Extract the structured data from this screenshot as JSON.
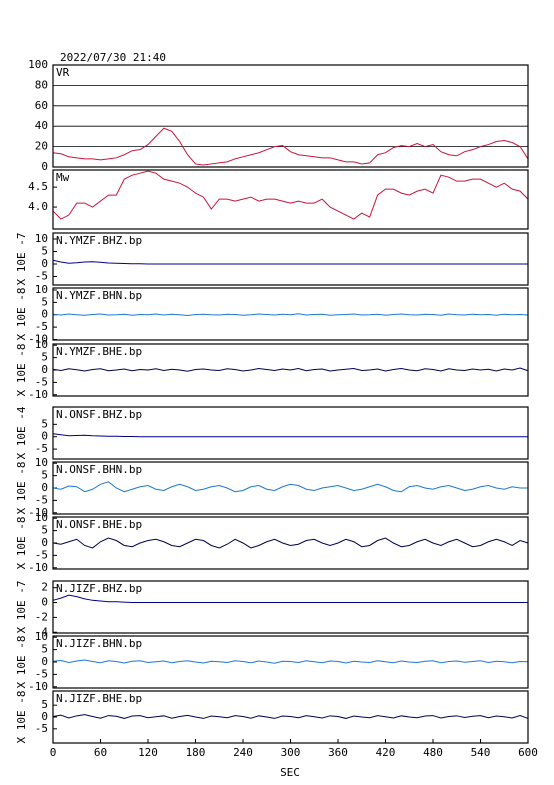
{
  "chart_data": {
    "type": "line",
    "title": "2022/07/30 21:40",
    "xlabel": "SEC",
    "xlim": [
      0,
      600
    ],
    "xticks": [
      0,
      60,
      120,
      180,
      240,
      300,
      360,
      420,
      480,
      540,
      600
    ],
    "x": [
      0,
      10,
      20,
      30,
      40,
      50,
      60,
      70,
      80,
      90,
      100,
      110,
      120,
      130,
      140,
      150,
      160,
      170,
      180,
      190,
      200,
      210,
      220,
      230,
      240,
      250,
      260,
      270,
      280,
      290,
      300,
      310,
      320,
      330,
      340,
      350,
      360,
      370,
      380,
      390,
      400,
      410,
      420,
      430,
      440,
      450,
      460,
      470,
      480,
      490,
      500,
      510,
      520,
      530,
      540,
      550,
      560,
      570,
      580,
      590,
      600
    ],
    "panels": [
      {
        "label": "VR",
        "ylim": [
          0,
          100
        ],
        "yticks": [
          0,
          20,
          40,
          60,
          80,
          100
        ],
        "grid": true,
        "series": [
          {
            "color": "#c8143c",
            "values": [
              14,
              13,
              10,
              9,
              8,
              8,
              7,
              8,
              9,
              12,
              16,
              17,
              22,
              30,
              38,
              35,
              25,
              12,
              3,
              2,
              3,
              4,
              5,
              8,
              10,
              12,
              14,
              17,
              20,
              21,
              15,
              12,
              11,
              10,
              9,
              9,
              7,
              5,
              5,
              3,
              4,
              12,
              14,
              19,
              21,
              20,
              23,
              20,
              22,
              15,
              12,
              11,
              15,
              17,
              20,
              22,
              25,
              26,
              24,
              20,
              8
            ]
          }
        ]
      },
      {
        "label": "Mw",
        "ylim": [
          3.45,
          4.93
        ],
        "yticks": [
          {
            "value": 4.0,
            "label": "4.0"
          },
          4.5
        ],
        "grid": false,
        "series": [
          {
            "color": "#c8143c",
            "values": [
              3.9,
              3.7,
              3.8,
              4.1,
              4.1,
              4.0,
              4.15,
              4.3,
              4.3,
              4.7,
              4.8,
              4.85,
              4.9,
              4.85,
              4.7,
              4.65,
              4.6,
              4.5,
              4.35,
              4.25,
              3.95,
              4.2,
              4.2,
              4.15,
              4.2,
              4.25,
              4.15,
              4.2,
              4.2,
              4.15,
              4.1,
              4.15,
              4.1,
              4.1,
              4.2,
              4.0,
              3.9,
              3.8,
              3.7,
              3.85,
              3.75,
              4.3,
              4.45,
              4.45,
              4.35,
              4.3,
              4.4,
              4.45,
              4.35,
              4.8,
              4.75,
              4.65,
              4.65,
              4.7,
              4.7,
              4.6,
              4.5,
              4.6,
              4.45,
              4.4,
              4.2
            ]
          }
        ]
      },
      {
        "label": "N.YMZF.BHZ.bp",
        "ylabel": "X 10E -7",
        "ylim": [
          -8.4,
          12.4
        ],
        "yticks": [
          -5,
          0,
          5,
          10
        ],
        "grid": false,
        "series": [
          {
            "color": "#00008b",
            "values": [
              1.5,
              0.8,
              0.3,
              0.5,
              0.8,
              0.9,
              0.7,
              0.4,
              0.3,
              0.2,
              0.1,
              0.1,
              0,
              0,
              0,
              0,
              0,
              0,
              0,
              0,
              0,
              0,
              0,
              0,
              0,
              0,
              0,
              0,
              0,
              0,
              0,
              0,
              0,
              0,
              0,
              0,
              0,
              0,
              0,
              0,
              0,
              0,
              0,
              0,
              0,
              0,
              0,
              0,
              0,
              0,
              0,
              0,
              0,
              0,
              0,
              0,
              0,
              0,
              0,
              0,
              0
            ]
          }
        ]
      },
      {
        "label": "N.YMZF.BHN.bp",
        "ylabel": "X 10E -8",
        "ylim": [
          -10.2,
          10.8
        ],
        "yticks": [
          -10,
          -5,
          0,
          5,
          10
        ],
        "grid": false,
        "series": [
          {
            "color": "#1e78d2",
            "values": [
              0.2,
              -0.1,
              0.3,
              0,
              -0.2,
              0.1,
              0.3,
              -0.1,
              0,
              0.2,
              -0.2,
              0.1,
              0,
              0.3,
              -0.1,
              0.2,
              0,
              -0.3,
              0.1,
              0.2,
              0,
              -0.1,
              0.2,
              0.1,
              -0.2,
              0,
              0.3,
              0.1,
              -0.1,
              0.2,
              0,
              0.4,
              -0.1,
              0.1,
              0.2,
              -0.2,
              0,
              0.1,
              0.3,
              -0.1,
              0,
              0.2,
              -0.2,
              0.1,
              0.3,
              0,
              -0.1,
              0.2,
              0.1,
              -0.2,
              0.3,
              0,
              -0.1,
              0.2,
              0,
              0.1,
              -0.2,
              0.2,
              0,
              0.1,
              -0.1
            ]
          }
        ]
      },
      {
        "label": "N.YMZF.BHE.bp",
        "ylabel": "X 10E -8",
        "ylim": [
          -10.5,
          10.5
        ],
        "yticks": [
          -10,
          -5,
          0,
          5,
          10
        ],
        "grid": false,
        "series": [
          {
            "color": "#000050",
            "values": [
              0.3,
              -0.2,
              0.5,
              0.1,
              -0.4,
              0.2,
              0.5,
              -0.3,
              0,
              0.4,
              -0.3,
              0.2,
              0,
              0.5,
              -0.2,
              0.3,
              0,
              -0.5,
              0.2,
              0.4,
              0,
              -0.2,
              0.5,
              0.2,
              -0.4,
              0,
              0.6,
              0.2,
              -0.2,
              0.4,
              0,
              0.6,
              -0.3,
              0.2,
              0.4,
              -0.4,
              0,
              0.3,
              0.6,
              -0.2,
              0,
              0.4,
              -0.4,
              0.2,
              0.6,
              0,
              -0.3,
              0.5,
              0.2,
              -0.4,
              0.5,
              0,
              -0.2,
              0.4,
              0,
              0.3,
              -0.4,
              0.4,
              0,
              0.8,
              -0.3
            ]
          }
        ]
      },
      {
        "label": "N.ONSF.BHZ.bp",
        "ylabel": "X 10E -4",
        "ylim": [
          -9,
          12
        ],
        "yticks": [
          -5,
          0,
          5
        ],
        "grid": false,
        "series": [
          {
            "color": "#00008b",
            "values": [
              1.2,
              0.8,
              0.4,
              0.5,
              0.6,
              0.4,
              0.3,
              0.2,
              0.2,
              0.1,
              0.1,
              0,
              0,
              0,
              0,
              0,
              0,
              0,
              0,
              0,
              0,
              0,
              0,
              0,
              0,
              0,
              0,
              0,
              0,
              0,
              0,
              0,
              0,
              0,
              0,
              0,
              0,
              0,
              0,
              0,
              0,
              0,
              0,
              0,
              0,
              0,
              0,
              0,
              0,
              0,
              0,
              0,
              0,
              0,
              0,
              0,
              0,
              0,
              0,
              0,
              0
            ]
          }
        ]
      },
      {
        "label": "N.ONSF.BHN.bp",
        "ylabel": "X 10E -8",
        "ylim": [
          -10.5,
          10.5
        ],
        "yticks": [
          -10,
          -5,
          0,
          5,
          10
        ],
        "grid": false,
        "series": [
          {
            "color": "#1e78d2",
            "values": [
              0,
              -0.5,
              0.8,
              0.5,
              -1.5,
              -0.5,
              1.5,
              2.5,
              0,
              -1.5,
              -0.5,
              0.5,
              1,
              -0.5,
              -1,
              0.5,
              1.5,
              0.5,
              -1,
              -0.5,
              0.5,
              1,
              0,
              -1.5,
              -1,
              0.5,
              1,
              -0.5,
              -1,
              0.5,
              1.5,
              1,
              -0.5,
              -1,
              0,
              0.5,
              1,
              0,
              -1,
              -0.5,
              0.5,
              1.5,
              0.5,
              -1,
              -1.5,
              0.5,
              1,
              0,
              -0.5,
              0.5,
              1,
              0,
              -1,
              -0.5,
              0.5,
              1,
              0,
              -0.5,
              0.5,
              0,
              0
            ]
          }
        ]
      },
      {
        "label": "N.ONSF.BHE.bp",
        "ylabel": "X 10E -8",
        "ylim": [
          -10.5,
          10.5
        ],
        "yticks": [
          -10,
          -5,
          0,
          5,
          10
        ],
        "grid": false,
        "series": [
          {
            "color": "#000050",
            "values": [
              0,
              -0.5,
              0.5,
              1.5,
              -1,
              -2,
              0.5,
              2,
              1,
              -1,
              -1.5,
              0,
              1,
              1.5,
              0.5,
              -1,
              -1.5,
              0,
              1.5,
              1,
              -1,
              -2,
              -0.5,
              1.5,
              0,
              -2,
              -1,
              0.5,
              1.5,
              0,
              -1,
              -0.5,
              1,
              1.5,
              0,
              -1,
              0,
              1.5,
              0.5,
              -1.5,
              -1,
              1,
              2,
              0,
              -1.5,
              -1,
              0.5,
              1.5,
              0,
              -1,
              0.5,
              1.5,
              0,
              -1.5,
              -1,
              0.5,
              1.5,
              0.5,
              -1,
              1,
              0
            ]
          }
        ]
      },
      {
        "label": "N.JIZF.BHZ.bp",
        "ylabel": "X 10E -7",
        "ylim": [
          -4.1,
          2.9
        ],
        "yticks": [
          -4,
          -2,
          0,
          2
        ],
        "grid": false,
        "series": [
          {
            "color": "#00008b",
            "values": [
              0.3,
              0.6,
              1.0,
              0.8,
              0.5,
              0.3,
              0.2,
              0.1,
              0.1,
              0.05,
              0,
              0,
              0,
              0,
              0,
              0,
              0,
              0,
              0,
              0,
              0,
              0,
              0,
              0,
              0,
              0,
              0,
              0,
              0,
              0,
              0,
              0,
              0,
              0,
              0,
              0,
              0,
              0,
              0,
              0,
              0,
              0,
              0,
              0,
              0,
              0,
              0,
              0,
              0,
              0,
              0,
              0,
              0,
              0,
              0,
              0,
              0,
              0,
              0,
              0,
              0
            ]
          }
        ]
      },
      {
        "label": "N.JIZF.BHN.bp",
        "ylabel": "X 10E -8",
        "ylim": [
          -10.5,
          10.5
        ],
        "yticks": [
          -10,
          -5,
          0,
          5,
          10
        ],
        "grid": false,
        "series": [
          {
            "color": "#1e78d2",
            "values": [
              0.3,
              0.6,
              -0.2,
              0.4,
              0.8,
              0.2,
              -0.3,
              0.5,
              0.2,
              -0.4,
              0.3,
              0.5,
              -0.2,
              0.1,
              0.4,
              -0.3,
              0.2,
              0.5,
              0,
              -0.4,
              0.3,
              0.1,
              -0.2,
              0.5,
              0.2,
              -0.3,
              0.4,
              0,
              -0.5,
              0.3,
              0.2,
              -0.2,
              0.5,
              0.1,
              -0.3,
              0.4,
              0.2,
              -0.4,
              0.3,
              0,
              -0.2,
              0.5,
              0.1,
              -0.3,
              0.4,
              0,
              -0.2,
              0.3,
              0.5,
              -0.3,
              0.2,
              0.4,
              -0.1,
              0.2,
              0.5,
              -0.2,
              0.3,
              0.1,
              -0.3,
              0.2,
              0.1
            ]
          }
        ]
      },
      {
        "label": "N.JIZF.BHE.bp",
        "ylabel": "X 10E -8",
        "ylim": [
          -11,
          11
        ],
        "yticks": [
          -5,
          0,
          5
        ],
        "grid": false,
        "series": [
          {
            "color": "#000050",
            "values": [
              0.2,
              0.8,
              -0.4,
              0.5,
              1.0,
              0.2,
              -0.5,
              0.6,
              0.3,
              -0.6,
              0.4,
              0.6,
              -0.3,
              0.1,
              0.5,
              -0.5,
              0.2,
              0.7,
              0,
              -0.6,
              0.4,
              0.1,
              -0.3,
              0.6,
              0.2,
              -0.5,
              0.5,
              0,
              -0.6,
              0.4,
              0.2,
              -0.3,
              0.6,
              0.1,
              -0.4,
              0.5,
              0.2,
              -0.6,
              0.4,
              0,
              -0.3,
              0.6,
              0.1,
              -0.4,
              0.5,
              0,
              -0.3,
              0.4,
              0.6,
              -0.4,
              0.2,
              0.5,
              -0.2,
              0.3,
              0.6,
              -0.3,
              0.4,
              0.1,
              -0.4,
              0.6,
              -0.6
            ]
          }
        ]
      }
    ]
  }
}
